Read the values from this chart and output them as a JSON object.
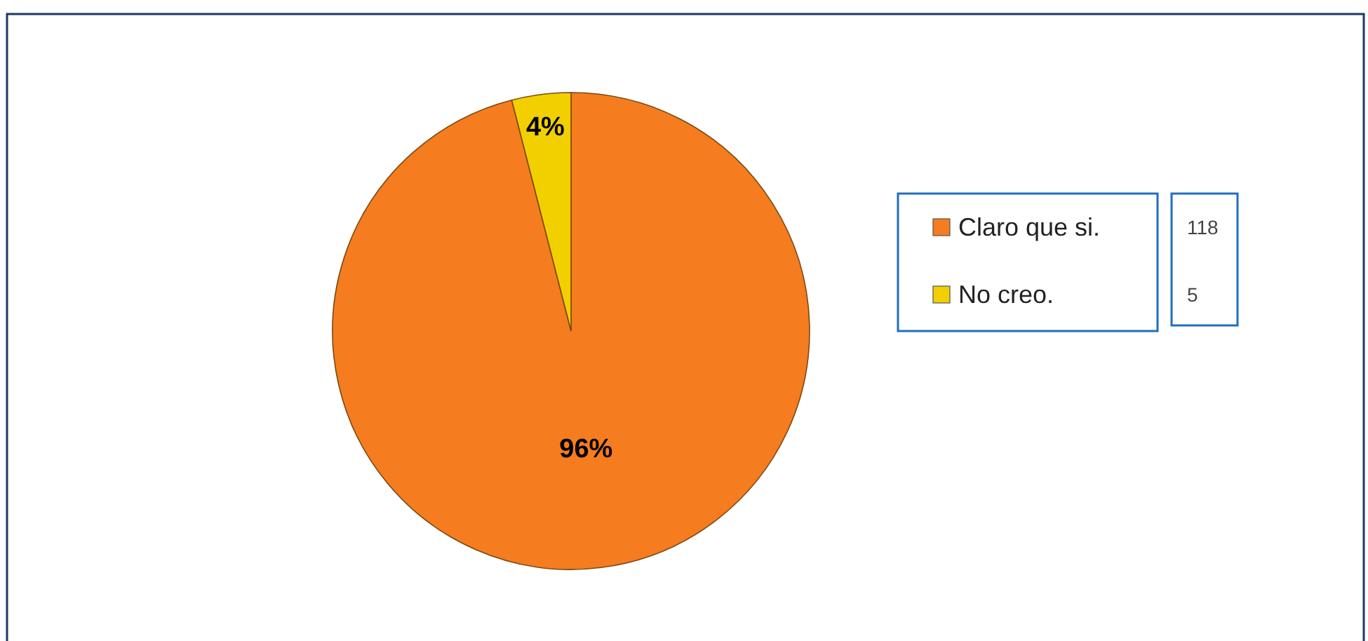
{
  "chart_data": {
    "type": "pie",
    "categories": [
      "Claro que si.",
      "No creo."
    ],
    "values": [
      96,
      4
    ],
    "colors": [
      "#f57c1f",
      "#f2d000"
    ],
    "value_labels": [
      "96%",
      "4%"
    ],
    "annotations": [
      "118",
      "5"
    ],
    "legend": "right"
  }
}
